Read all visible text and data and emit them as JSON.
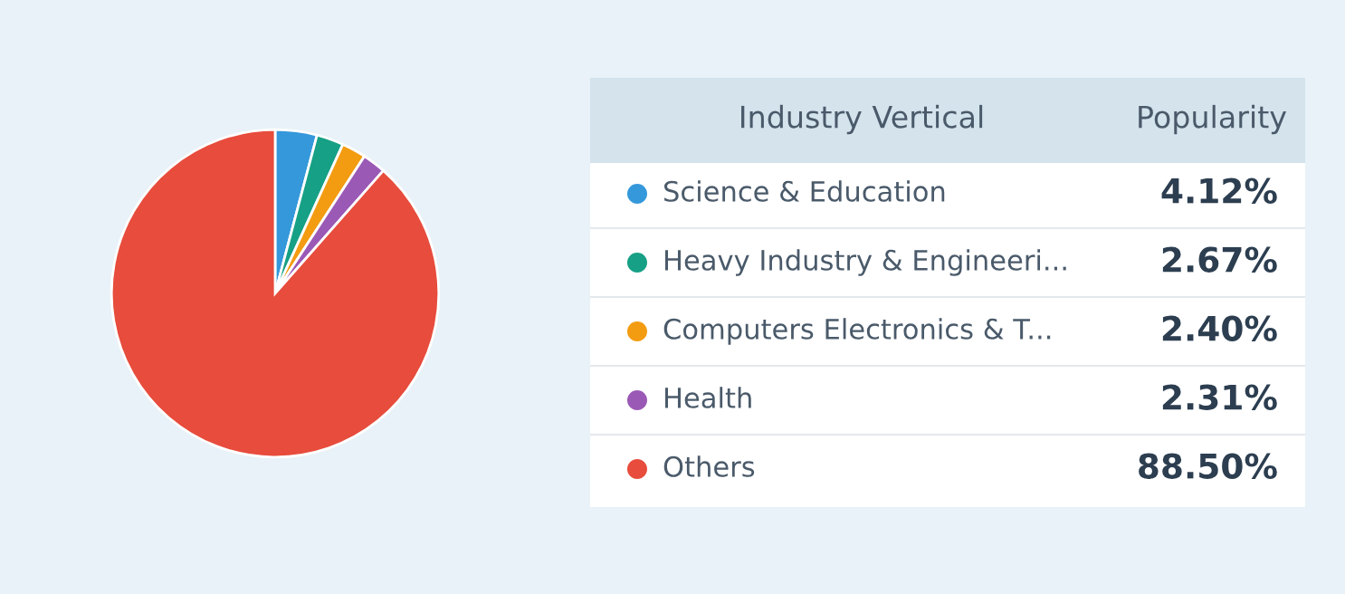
{
  "chart_data": {
    "type": "pie",
    "legend_title": "Industry Vertical",
    "annotations": [
      "Popularity"
    ],
    "categories": [
      "Science & Education",
      "Heavy Industry & Engineeri...",
      "Computers Electronics & T...",
      "Health",
      "Others"
    ],
    "values": [
      4.12,
      2.67,
      2.4,
      2.31,
      88.5
    ],
    "colors": [
      "#3498db",
      "#16a085",
      "#f39c12",
      "#9b59b6",
      "#e74c3c"
    ],
    "value_labels": [
      "4.12%",
      "2.67%",
      "2.40%",
      "2.31%",
      "88.50%"
    ],
    "legend": "right"
  }
}
